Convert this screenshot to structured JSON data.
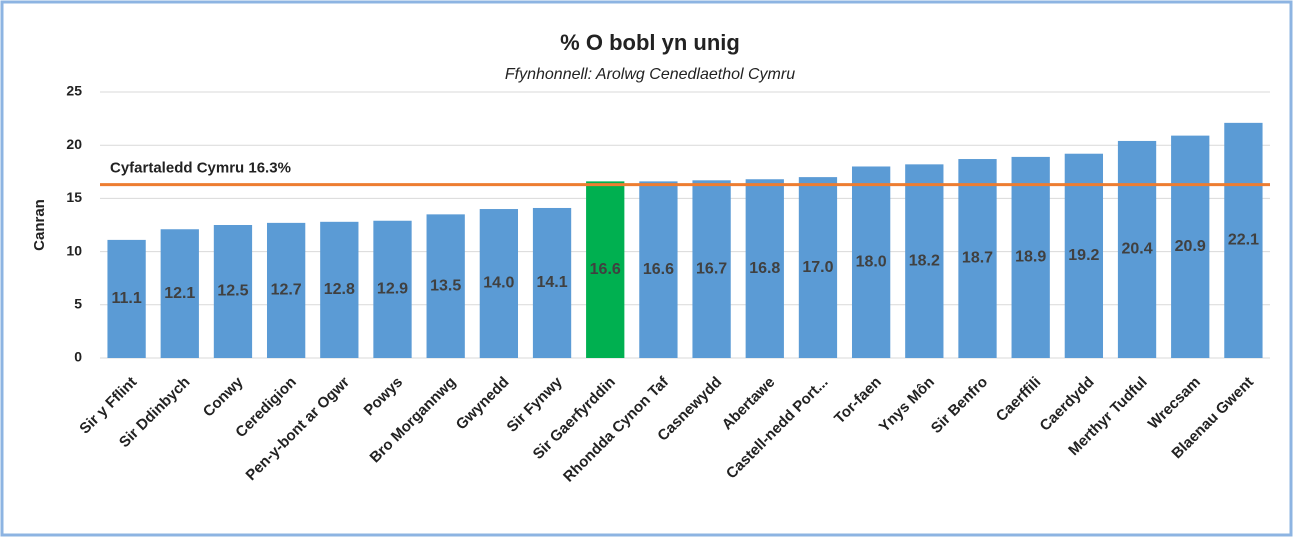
{
  "chart_data": {
    "type": "bar",
    "title": "% O bobl yn unig",
    "subtitle": "Ffynhonnell: Arolwg Cenedlaethol Cymru",
    "y_label": "Canran",
    "categories": [
      "Sir y Fflint",
      "Sir Ddinbych",
      "Conwy",
      "Ceredigion",
      "Pen-y-bont ar Ogwr",
      "Powys",
      "Bro Morgannwg",
      "Gwynedd",
      "Sir Fynwy",
      "Sir Gaerfyrddin",
      "Rhondda Cynon Taf",
      "Casnewydd",
      "Abertawe",
      "Castell-nedd Port...",
      "Tor-faen",
      "Ynys Môn",
      "Sir Benfro",
      "Caerffili",
      "Caerdydd",
      "Merthyr Tudful",
      "Wrecsam",
      "Blaenau Gwent"
    ],
    "values": [
      11.1,
      12.1,
      12.5,
      12.7,
      12.8,
      12.9,
      13.5,
      14.0,
      14.1,
      16.6,
      16.6,
      16.7,
      16.8,
      17.0,
      18.0,
      18.2,
      18.7,
      18.9,
      19.2,
      20.4,
      20.9,
      22.1
    ],
    "value_labels": [
      "11.1",
      "12.1",
      "12.5",
      "12.7",
      "12.8",
      "12.9",
      "13.5",
      "14.0",
      "14.1",
      "16.6",
      "16.6",
      "16.7",
      "16.8",
      "17.0",
      "18.0",
      "18.2",
      "18.7",
      "18.9",
      "19.2",
      "20.4",
      "20.9",
      "22.1"
    ],
    "colors": [
      "#5b9bd5",
      "#5b9bd5",
      "#5b9bd5",
      "#5b9bd5",
      "#5b9bd5",
      "#5b9bd5",
      "#5b9bd5",
      "#5b9bd5",
      "#5b9bd5",
      "#00b050",
      "#5b9bd5",
      "#5b9bd5",
      "#5b9bd5",
      "#5b9bd5",
      "#5b9bd5",
      "#5b9bd5",
      "#5b9bd5",
      "#5b9bd5",
      "#5b9bd5",
      "#5b9bd5",
      "#5b9bd5",
      "#5b9bd5"
    ],
    "reference_line": {
      "value": 16.3,
      "label": "Cyfartaledd Cymru 16.3%",
      "color": "#ed7d31"
    },
    "ylim": [
      0,
      25
    ],
    "yticks": [
      0,
      5,
      10,
      15,
      20,
      25
    ],
    "grid": true
  }
}
